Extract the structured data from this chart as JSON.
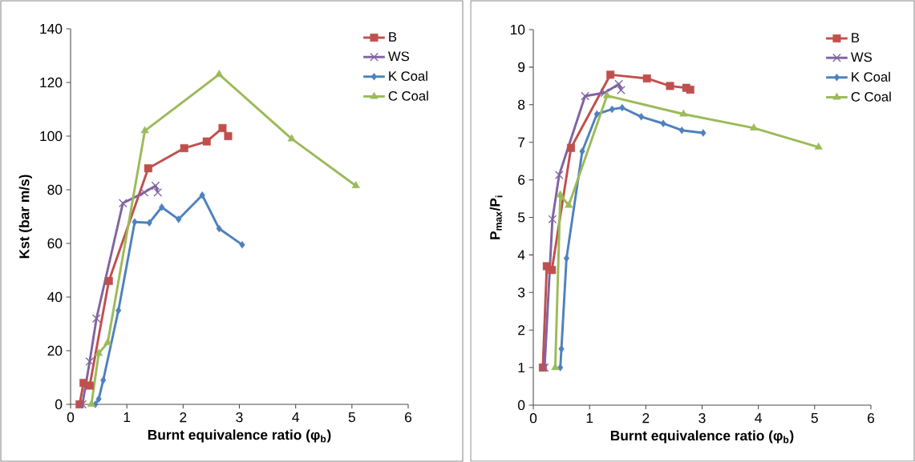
{
  "chart_data": [
    {
      "type": "line",
      "xlabel": "Burnt equivalence ratio (φ$_{b}$)",
      "ylabel": "Kst (bar m/s)",
      "xlim": [
        0,
        6
      ],
      "ylim": [
        0,
        140
      ],
      "xticks": [
        0,
        1,
        2,
        3,
        4,
        5,
        6
      ],
      "yticks": [
        0,
        20,
        40,
        60,
        80,
        100,
        120,
        140
      ],
      "legend": "top right",
      "grid": false,
      "series": [
        {
          "name": "B",
          "color": "#c0504d",
          "marker": "square",
          "x": [
            0.16,
            0.23,
            0.34,
            0.68,
            1.38,
            2.02,
            2.42,
            2.7,
            2.8
          ],
          "values": [
            0,
            8,
            7,
            46,
            88,
            95.5,
            98,
            103,
            100
          ]
        },
        {
          "name": "WS",
          "color": "#8064a2",
          "marker": "cross",
          "x": [
            0.21,
            0.34,
            0.46,
            0.93,
            1.31,
            1.51,
            1.55
          ],
          "values": [
            0,
            16,
            32,
            75,
            79,
            81.5,
            79
          ]
        },
        {
          "name": "K Coal",
          "color": "#4f81bd",
          "marker": "diamond",
          "x": [
            0.44,
            0.5,
            0.58,
            0.85,
            1.14,
            1.4,
            1.62,
            1.92,
            2.34,
            2.64,
            3.05
          ],
          "values": [
            0,
            2,
            9,
            35,
            68,
            67.7,
            73.5,
            69,
            78,
            65.5,
            59.5
          ]
        },
        {
          "name": "C Coal",
          "color": "#9bbb59",
          "marker": "triangle",
          "x": [
            0.37,
            0.5,
            0.66,
            1.32,
            2.64,
            3.93,
            5.07
          ],
          "values": [
            0,
            19,
            23,
            102,
            123,
            99,
            81.5
          ]
        }
      ]
    },
    {
      "type": "line",
      "xlabel": "Burnt equivalence ratio (φ$_{b}$)",
      "ylabel": "P$_{max}$/P$_{i}$",
      "xlim": [
        0,
        6
      ],
      "ylim": [
        0,
        10
      ],
      "xticks": [
        0,
        1,
        2,
        3,
        4,
        5,
        6
      ],
      "yticks": [
        0,
        1,
        2,
        3,
        4,
        5,
        6,
        7,
        8,
        9,
        10
      ],
      "legend": "top right",
      "grid": false,
      "series": [
        {
          "name": "B",
          "color": "#c0504d",
          "marker": "square",
          "x": [
            0.17,
            0.24,
            0.33,
            0.67,
            1.37,
            2.02,
            2.43,
            2.72,
            2.79
          ],
          "values": [
            1,
            3.7,
            3.6,
            6.85,
            8.8,
            8.7,
            8.5,
            8.45,
            8.4
          ]
        },
        {
          "name": "WS",
          "color": "#8064a2",
          "marker": "cross",
          "x": [
            0.2,
            0.34,
            0.46,
            0.92,
            1.27,
            1.52,
            1.56
          ],
          "values": [
            1,
            4.95,
            6.13,
            8.23,
            8.32,
            8.55,
            8.39
          ]
        },
        {
          "name": "K Coal",
          "color": "#4f81bd",
          "marker": "diamond",
          "x": [
            0.48,
            0.5,
            0.59,
            0.87,
            1.13,
            1.4,
            1.58,
            1.92,
            2.31,
            2.64,
            3.02
          ],
          "values": [
            1,
            1.5,
            3.91,
            6.76,
            7.75,
            7.88,
            7.92,
            7.68,
            7.5,
            7.32,
            7.25
          ]
        },
        {
          "name": "C Coal",
          "color": "#9bbb59",
          "marker": "triangle",
          "x": [
            0.39,
            0.48,
            0.63,
            1.31,
            2.67,
            3.92,
            5.07
          ],
          "values": [
            1,
            5.6,
            5.32,
            8.24,
            7.75,
            7.38,
            6.87
          ]
        }
      ]
    }
  ]
}
